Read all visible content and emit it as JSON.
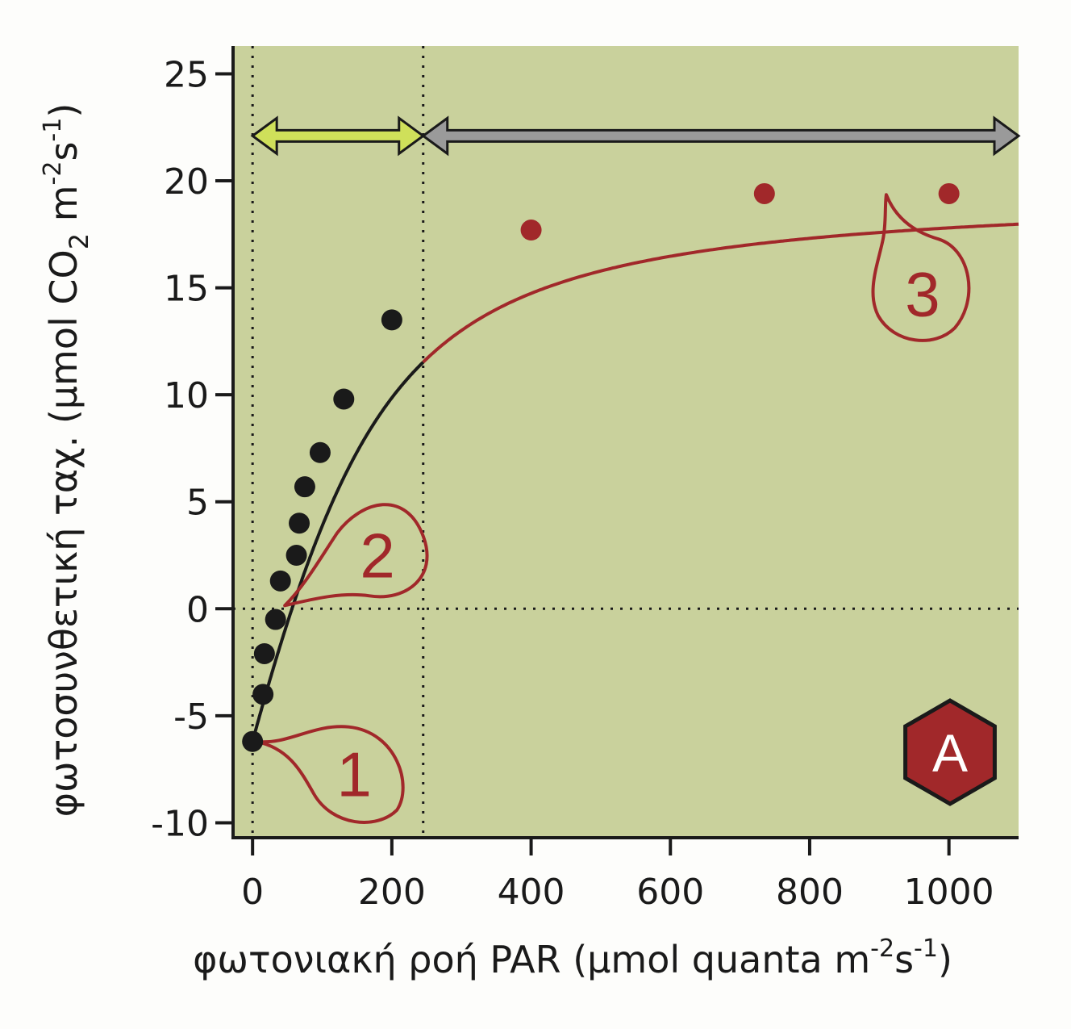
{
  "colors": {
    "background": "#c9d19c",
    "curve_low": "#1a1a1a",
    "curve_high": "#a1282a",
    "arrow_light": "#cfe05a",
    "arrow_gray": "#9a9a9a",
    "badge": "#a1282a"
  },
  "chart_data": {
    "type": "scatter",
    "xlabel": {
      "main": "φωτονιακή ροή PAR (μmol quanta m",
      "sup1": "-2",
      "mid": "s",
      "sup2": "-1",
      "end": ")"
    },
    "ylabel": {
      "main": "φωτοσυνθετική ταχ. (μmol CO",
      "sub": "2",
      "mid": " m",
      "sup1": "-2",
      "mid2": "s",
      "sup2": "-1",
      "end": ")"
    },
    "xlim": [
      -28,
      1100
    ],
    "ylim": [
      -10.7,
      26.3
    ],
    "x_ticks": [
      0,
      200,
      400,
      600,
      800,
      1000
    ],
    "x_tick_labels": [
      "0",
      "200",
      "400",
      "600",
      "800",
      "1000"
    ],
    "y_ticks": [
      -10,
      -5,
      0,
      5,
      10,
      15,
      20,
      25
    ],
    "y_tick_labels": [
      "-10",
      "-5",
      "0",
      "5",
      "10",
      "15",
      "20",
      "25"
    ],
    "grid": false,
    "reference_lines": {
      "vertical_x": [
        0,
        245
      ],
      "horizontal_y": [
        0
      ]
    },
    "region_split_x": 245,
    "curve_model": {
      "pmax": 25.8,
      "rd": 6.2,
      "phi": 0.12,
      "theta": 0.7
    },
    "series": [
      {
        "color": "#1a1a1a",
        "x": [
          0,
          15,
          17,
          33,
          40,
          63,
          67,
          75,
          97,
          131,
          200
        ],
        "y": [
          -6.2,
          -4.0,
          -2.1,
          -0.5,
          1.3,
          2.5,
          4.0,
          5.7,
          7.3,
          9.8,
          13.5
        ]
      },
      {
        "color": "#a1282a",
        "x": [
          400,
          735,
          1000
        ],
        "y": [
          17.7,
          19.4,
          19.4
        ]
      }
    ],
    "annotations": [
      {
        "label": "1",
        "anchor_x": 0,
        "anchor_y": -6.2
      },
      {
        "label": "2",
        "anchor_x": 37,
        "anchor_y": 0
      },
      {
        "label": "3",
        "anchor_x": 910,
        "anchor_y": 19.5
      }
    ],
    "range_arrows": [
      {
        "from_x": 0,
        "to_x": 245,
        "y": 22.1,
        "color": "#cfe05a"
      },
      {
        "from_x": 245,
        "to_x": 1100,
        "y": 22.1,
        "color": "#9a9a9a"
      }
    ],
    "badge": "A"
  }
}
